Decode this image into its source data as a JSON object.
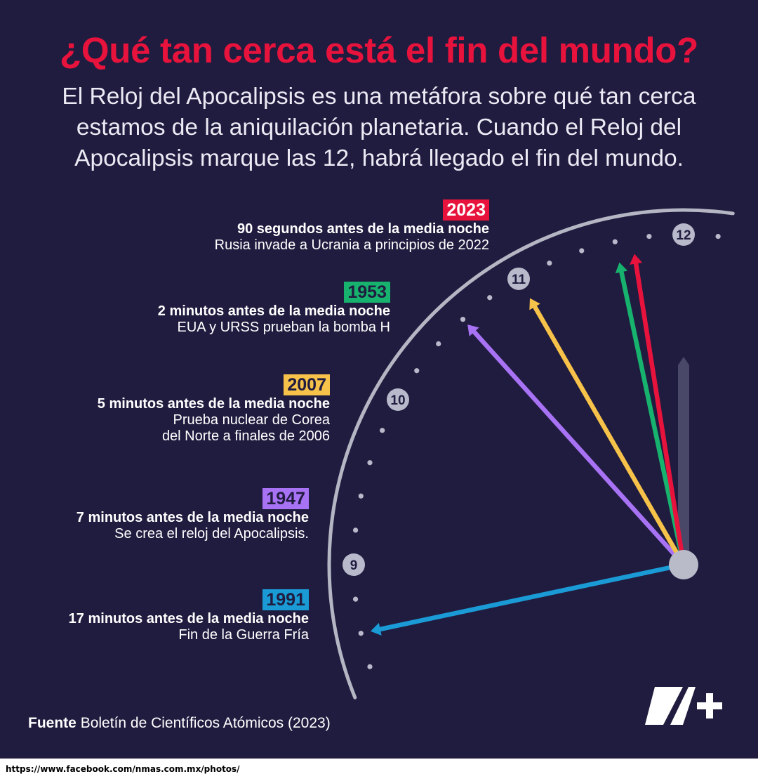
{
  "title": "¿Qué tan cerca está el fin del mundo?",
  "intro": [
    "El Reloj del Apocalipsis es una metáfora sobre qué tan cerca",
    "estamos de la aniquilación planetaria. Cuando el Reloj del",
    "Apocalipsis marque las 12, habrá llegado el fin del mundo."
  ],
  "events": [
    {
      "year": "2023",
      "headline": "90 segundos antes de la media noche",
      "description": [
        "Rusia invade a Ucrania a principios de 2022"
      ],
      "color": "#e8133d",
      "year_text_color": "#ffffff",
      "seconds_before_midnight": 90
    },
    {
      "year": "1953",
      "headline": "2 minutos antes  de la media noche",
      "description": [
        "EUA y URSS prueban la bomba H"
      ],
      "color": "#17b26e",
      "year_text_color": "#201c3f",
      "seconds_before_midnight": 120
    },
    {
      "year": "2007",
      "headline": "5 minutos antes de la media noche",
      "description": [
        "Prueba nuclear de Corea",
        "del Norte a finales de 2006"
      ],
      "color": "#f7c24a",
      "year_text_color": "#201c3f",
      "seconds_before_midnight": 300
    },
    {
      "year": "1947",
      "headline": "7 minutos antes de la media noche",
      "description": [
        "Se crea el reloj del Apocalipsis."
      ],
      "color": "#a872f5",
      "year_text_color": "#201c3f",
      "seconds_before_midnight": 420
    },
    {
      "year": "1991",
      "headline": "17 minutos antes  de la media noche",
      "description": [
        "Fin de la Guerra Fría"
      ],
      "color": "#1a9bd6",
      "year_text_color": "#201c3f",
      "seconds_before_midnight": 1020
    }
  ],
  "clock": {
    "hour_labels": [
      "12",
      "11",
      "10",
      "9"
    ],
    "rim_color": "#b4b6c4",
    "hour_hand_color": "#4a4868"
  },
  "source": {
    "label": "Fuente",
    "text": "Boletín de Científicos Atómicos (2023)"
  },
  "logo": "N+",
  "url": "https://www.facebook.com/nmas.com.mx/photos/"
}
